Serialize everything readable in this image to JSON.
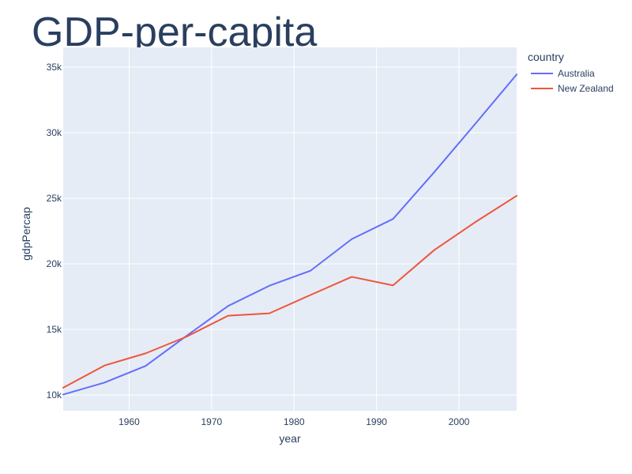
{
  "chart_data": {
    "type": "line",
    "title": "GDP-per-capita",
    "xlabel": "year",
    "ylabel": "gdpPercap",
    "xlim": [
      1952,
      2007
    ],
    "ylim": [
      8800,
      36500
    ],
    "x_ticks": [
      1960,
      1970,
      1980,
      1990,
      2000
    ],
    "x_tick_labels": [
      "1960",
      "1970",
      "1980",
      "1990",
      "2000"
    ],
    "y_ticks": [
      10000,
      15000,
      20000,
      25000,
      30000,
      35000
    ],
    "y_tick_labels": [
      "10k",
      "15k",
      "20k",
      "25k",
      "30k",
      "35k"
    ],
    "grid": true,
    "legend_title": "country",
    "legend_position": "top-right",
    "x": [
      1952,
      1957,
      1962,
      1967,
      1972,
      1977,
      1982,
      1987,
      1992,
      1997,
      2002,
      2007
    ],
    "series": [
      {
        "name": "Australia",
        "color": "#636efa",
        "values": [
          10040,
          10950,
          12220,
          14530,
          16790,
          18330,
          19480,
          21890,
          23420,
          26990,
          30690,
          34440
        ]
      },
      {
        "name": "New Zealand",
        "color": "#ef553b",
        "values": [
          10560,
          12250,
          13180,
          14460,
          16050,
          16230,
          17630,
          19010,
          18360,
          21050,
          23190,
          25190
        ]
      }
    ]
  }
}
